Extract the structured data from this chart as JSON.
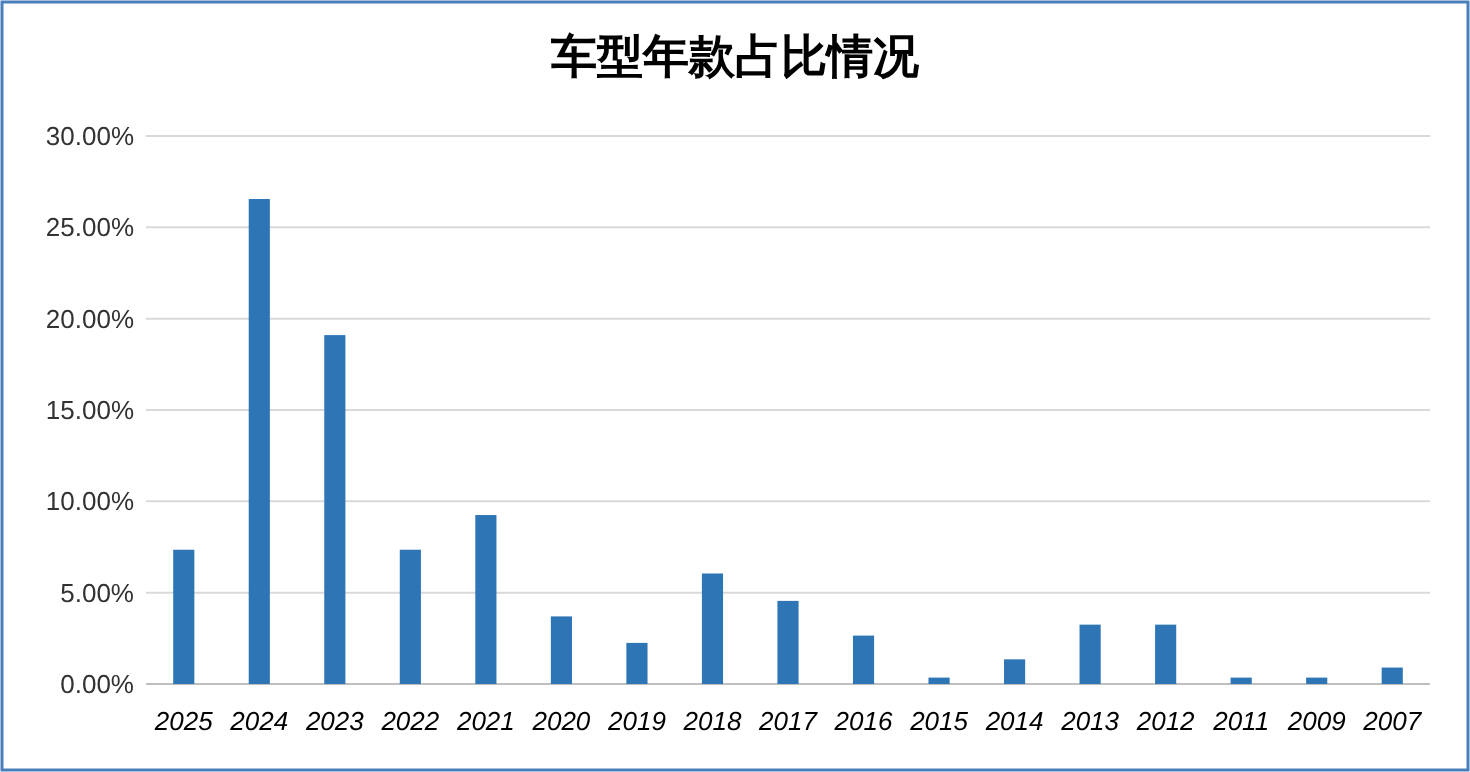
{
  "chart_data": {
    "type": "bar",
    "title": "车型年款占比情况",
    "categories": [
      "2025",
      "2024",
      "2023",
      "2022",
      "2021",
      "2020",
      "2019",
      "2018",
      "2017",
      "2016",
      "2015",
      "2014",
      "2013",
      "2012",
      "2011",
      "2009",
      "2007"
    ],
    "values": [
      7.35,
      26.55,
      19.1,
      7.35,
      9.25,
      3.7,
      2.25,
      6.05,
      4.55,
      2.65,
      0.35,
      1.35,
      3.25,
      3.25,
      0.35,
      0.35,
      0.9
    ],
    "color": "#2e75b6",
    "ylim": [
      0,
      30
    ],
    "yticks": [
      {
        "value": 0,
        "label": "0.00%"
      },
      {
        "value": 5,
        "label": "5.00%"
      },
      {
        "value": 10,
        "label": "10.00%"
      },
      {
        "value": 15,
        "label": "15.00%"
      },
      {
        "value": 20,
        "label": "20.00%"
      },
      {
        "value": 25,
        "label": "25.00%"
      },
      {
        "value": 30,
        "label": "30.00%"
      }
    ],
    "grid": "y"
  }
}
